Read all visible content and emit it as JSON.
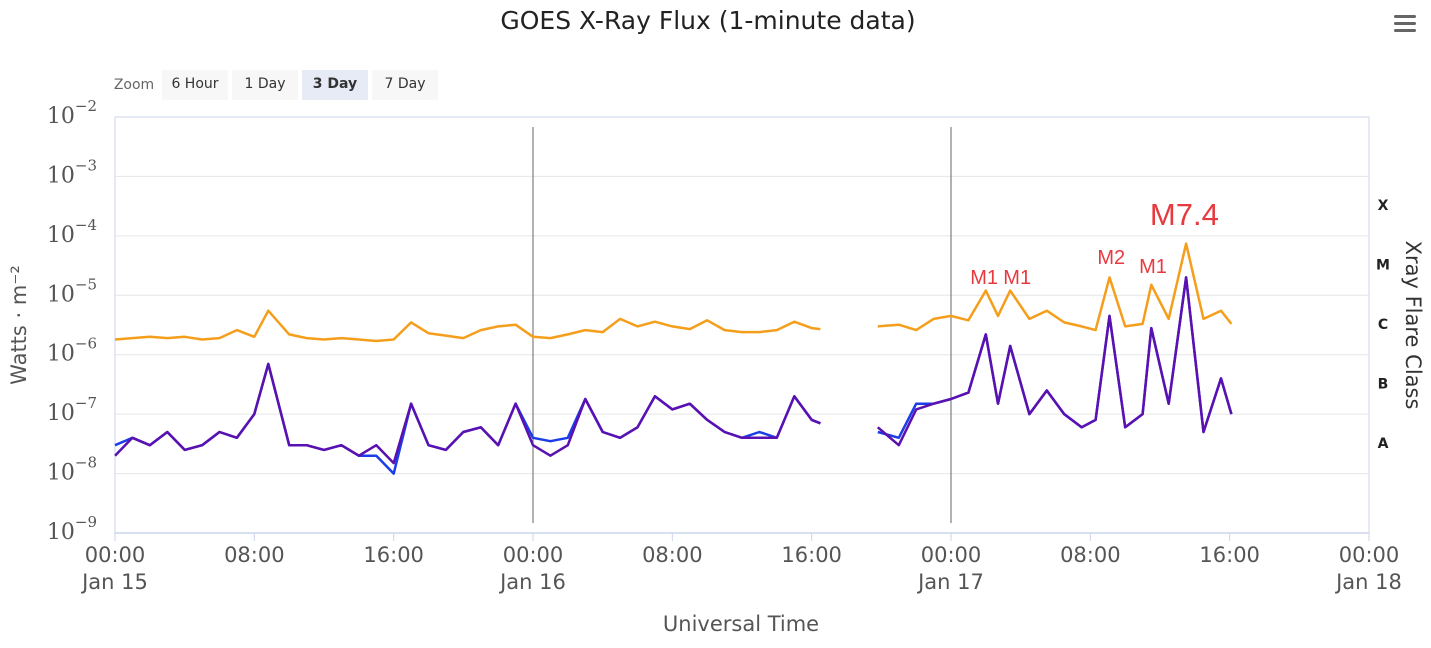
{
  "chart_data": {
    "type": "line",
    "title": "GOES X-Ray Flux (1-minute data)",
    "x_label": "Universal Time",
    "y_label": "Watts · m⁻²",
    "y2_label": "Xray Flare Class",
    "log_y": true,
    "grid": true,
    "xlim": [
      0,
      72
    ],
    "ylim": [
      1e-09,
      0.01
    ],
    "xticks": [
      {
        "value": 0,
        "label": "00:00",
        "date": "Jan 15"
      },
      {
        "value": 8,
        "label": "08:00"
      },
      {
        "value": 16,
        "label": "16:00"
      },
      {
        "value": 24,
        "label": "00:00",
        "date": "Jan 16"
      },
      {
        "value": 32,
        "label": "08:00"
      },
      {
        "value": 40,
        "label": "16:00"
      },
      {
        "value": 48,
        "label": "00:00",
        "date": "Jan 17"
      },
      {
        "value": 56,
        "label": "08:00"
      },
      {
        "value": 64,
        "label": "16:00"
      },
      {
        "value": 72,
        "label": "00:00",
        "date": "Jan 18"
      }
    ],
    "yticks": [
      {
        "value": 1e-09,
        "label": "10",
        "exp": "−9"
      },
      {
        "value": 1e-08,
        "label": "10",
        "exp": "−8"
      },
      {
        "value": 1e-07,
        "label": "10",
        "exp": "−7"
      },
      {
        "value": 1e-06,
        "label": "10",
        "exp": "−6"
      },
      {
        "value": 1e-05,
        "label": "10",
        "exp": "−5"
      },
      {
        "value": 0.0001,
        "label": "10",
        "exp": "−4"
      },
      {
        "value": 0.001,
        "label": "10",
        "exp": "−3"
      },
      {
        "value": 0.01,
        "label": "10",
        "exp": "−2"
      }
    ],
    "flare_classes": [
      {
        "label": "X",
        "range": [
          0.0001,
          0.001
        ]
      },
      {
        "label": "M",
        "range": [
          1e-05,
          0.0001
        ]
      },
      {
        "label": "C",
        "range": [
          1e-06,
          1e-05
        ]
      },
      {
        "label": "B",
        "range": [
          1e-07,
          1e-06
        ]
      },
      {
        "label": "A",
        "range": [
          1e-08,
          1e-07
        ]
      }
    ],
    "plot_lines": [
      24,
      48
    ],
    "x": [
      0,
      1,
      2,
      3,
      4,
      5,
      6,
      7,
      8,
      8.8,
      10,
      11,
      12,
      13,
      14,
      15,
      16,
      17,
      18,
      19,
      20,
      21,
      22,
      23,
      24,
      25,
      26,
      27,
      28,
      29,
      30,
      31,
      32,
      33,
      34,
      35,
      36,
      37,
      38,
      39,
      40,
      40.5,
      42,
      43.8,
      45,
      46,
      47,
      48,
      49,
      50,
      50.7,
      51.4,
      52.5,
      53.5,
      54.5,
      55.5,
      56.3,
      57.1,
      58,
      59,
      59.5,
      60.5,
      61.5,
      62.5,
      63.5,
      64.1
    ],
    "series": [
      {
        "color": "#1a3de8",
        "values": [
          3e-08,
          4e-08,
          3e-08,
          5e-08,
          2.5e-08,
          3e-08,
          5e-08,
          4e-08,
          1e-07,
          7e-07,
          3e-08,
          3e-08,
          2.5e-08,
          3e-08,
          2e-08,
          2e-08,
          1e-08,
          1.5e-07,
          3e-08,
          2.5e-08,
          5e-08,
          6e-08,
          3e-08,
          1.5e-07,
          4e-08,
          3.5e-08,
          4e-08,
          1.8e-07,
          5e-08,
          4e-08,
          6e-08,
          2e-07,
          1.2e-07,
          1.5e-07,
          8e-08,
          5e-08,
          4e-08,
          5e-08,
          4e-08,
          2e-07,
          8e-08,
          7e-08,
          null,
          5e-08,
          4e-08,
          1.5e-07,
          1.5e-07,
          1.8e-07,
          2.3e-07,
          2.2e-06,
          1.5e-07,
          1.4e-06,
          1e-07,
          2.5e-07,
          1e-07,
          6e-08,
          8e-08,
          4.5e-06,
          6e-08,
          1e-07,
          2.8e-06,
          1.5e-07,
          2e-05,
          5e-08,
          4e-07,
          1e-07
        ]
      },
      {
        "color": "#5b10b0",
        "values": [
          2e-08,
          4e-08,
          3e-08,
          5e-08,
          2.5e-08,
          3e-08,
          5e-08,
          4e-08,
          1e-07,
          7e-07,
          3e-08,
          3e-08,
          2.5e-08,
          3e-08,
          2e-08,
          3e-08,
          1.5e-08,
          1.5e-07,
          3e-08,
          2.5e-08,
          5e-08,
          6e-08,
          3e-08,
          1.5e-07,
          3e-08,
          2e-08,
          3e-08,
          1.8e-07,
          5e-08,
          4e-08,
          6e-08,
          2e-07,
          1.2e-07,
          1.5e-07,
          8e-08,
          5e-08,
          4e-08,
          4e-08,
          4e-08,
          2e-07,
          8e-08,
          7e-08,
          null,
          6e-08,
          3e-08,
          1.2e-07,
          1.5e-07,
          1.8e-07,
          2.3e-07,
          2.2e-06,
          1.5e-07,
          1.4e-06,
          1e-07,
          2.5e-07,
          1e-07,
          6e-08,
          8e-08,
          4.5e-06,
          6e-08,
          1e-07,
          2.8e-06,
          1.5e-07,
          2e-05,
          5e-08,
          4e-07,
          1e-07
        ]
      },
      {
        "color": "#f59e1b",
        "values": [
          1.8e-06,
          1.9e-06,
          2e-06,
          1.9e-06,
          2e-06,
          1.8e-06,
          1.9e-06,
          2.6e-06,
          2e-06,
          5.5e-06,
          2.2e-06,
          1.9e-06,
          1.8e-06,
          1.9e-06,
          1.8e-06,
          1.7e-06,
          1.8e-06,
          3.5e-06,
          2.3e-06,
          2.1e-06,
          1.9e-06,
          2.6e-06,
          3e-06,
          3.2e-06,
          2e-06,
          1.9e-06,
          2.2e-06,
          2.6e-06,
          2.4e-06,
          4e-06,
          3e-06,
          3.6e-06,
          3e-06,
          2.7e-06,
          3.8e-06,
          2.6e-06,
          2.4e-06,
          2.4e-06,
          2.6e-06,
          3.6e-06,
          2.8e-06,
          2.7e-06,
          null,
          3e-06,
          3.2e-06,
          2.6e-06,
          4e-06,
          4.5e-06,
          3.8e-06,
          1.2e-05,
          4.5e-06,
          1.2e-05,
          4e-06,
          5.5e-06,
          3.5e-06,
          3e-06,
          2.6e-06,
          2e-05,
          3e-06,
          3.3e-06,
          1.5e-05,
          4e-06,
          7.4e-05,
          4e-06,
          5.5e-06,
          3.3e-06
        ]
      }
    ],
    "annotations": [
      {
        "text": "M1",
        "x": 49.9,
        "y": 1.9e-05
      },
      {
        "text": "M1",
        "x": 51.8,
        "y": 1.9e-05
      },
      {
        "text": "M2",
        "x": 57.2,
        "y": 4.1e-05
      },
      {
        "text": "M1",
        "x": 59.6,
        "y": 2.9e-05
      },
      {
        "text": "M7.4",
        "x": 61.4,
        "y": 0.00021,
        "emphasis": true
      }
    ],
    "annotation_color": "#e8393f"
  },
  "zoom": {
    "label": "Zoom",
    "buttons": [
      "6 Hour",
      "1 Day",
      "3 Day",
      "7 Day"
    ],
    "selected": 2
  }
}
